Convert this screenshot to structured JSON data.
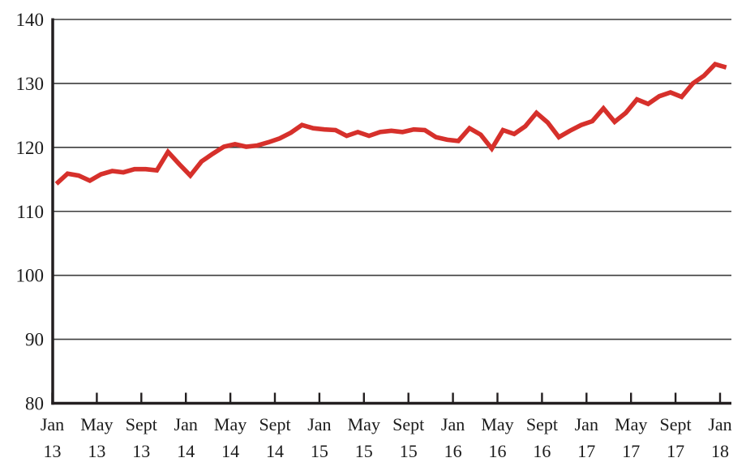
{
  "chart_data": {
    "type": "line",
    "x_unit": "month",
    "x_start": "Jan 13",
    "x_end": "Jan 18",
    "x_tick_labels": [
      {
        "month": "Jan",
        "year": "13"
      },
      {
        "month": "May",
        "year": "13"
      },
      {
        "month": "Sept",
        "year": "13"
      },
      {
        "month": "Jan",
        "year": "14"
      },
      {
        "month": "May",
        "year": "14"
      },
      {
        "month": "Sept",
        "year": "14"
      },
      {
        "month": "Jan",
        "year": "15"
      },
      {
        "month": "May",
        "year": "15"
      },
      {
        "month": "Sept",
        "year": "15"
      },
      {
        "month": "Jan",
        "year": "16"
      },
      {
        "month": "May",
        "year": "16"
      },
      {
        "month": "Sept",
        "year": "16"
      },
      {
        "month": "Jan",
        "year": "17"
      },
      {
        "month": "May",
        "year": "17"
      },
      {
        "month": "Sept",
        "year": "17"
      },
      {
        "month": "Jan",
        "year": "18"
      }
    ],
    "y_tick_labels": [
      "140",
      "130",
      "120",
      "110",
      "100",
      "90",
      "80"
    ],
    "y_tick_values": [
      140,
      130,
      120,
      110,
      100,
      90,
      80
    ],
    "ylim": [
      80,
      140
    ],
    "grid": "horizontal-only",
    "legend": "none",
    "title": "",
    "series": [
      {
        "name": "index-line",
        "color": "#d6302b",
        "values": [
          114.3,
          115.9,
          115.6,
          114.8,
          115.8,
          116.3,
          116.1,
          116.6,
          116.6,
          116.4,
          119.3,
          117.4,
          115.6,
          117.8,
          119.0,
          120.1,
          120.5,
          120.1,
          120.3,
          120.8,
          121.4,
          122.3,
          123.5,
          123.0,
          122.8,
          122.7,
          121.8,
          122.4,
          121.8,
          122.4,
          122.6,
          122.4,
          122.8,
          122.7,
          121.6,
          121.2,
          121.0,
          123.0,
          122.0,
          119.8,
          122.7,
          122.1,
          123.3,
          125.4,
          123.9,
          121.6,
          122.6,
          123.5,
          124.1,
          126.1,
          124.0,
          125.4,
          127.5,
          126.8,
          128.0,
          128.6,
          127.9,
          130.0,
          131.2,
          133.0,
          132.5
        ]
      }
    ],
    "colors": {
      "line": "#d6302b",
      "axis": "#231f20",
      "grid": "#3d3d3d",
      "text": "#1b1b1b",
      "background": "#ffffff"
    }
  }
}
